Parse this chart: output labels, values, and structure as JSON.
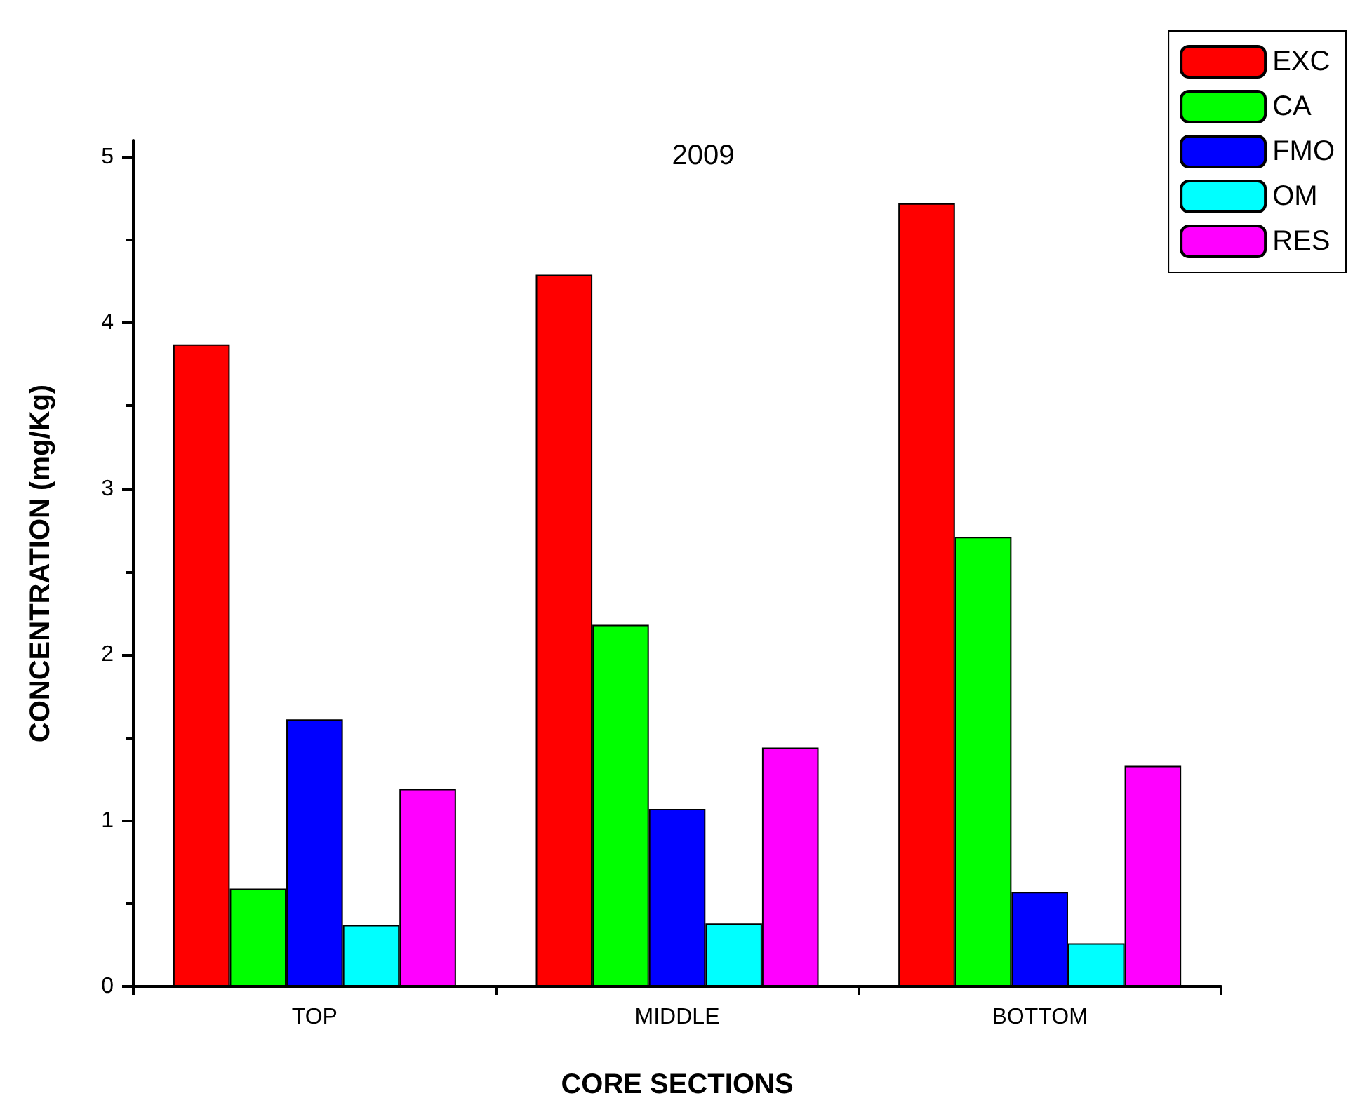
{
  "chart_data": {
    "type": "bar",
    "title": "2009",
    "xlabel": "CORE SECTIONS",
    "ylabel": "CONCENTRATION (mg/Kg)",
    "categories": [
      "TOP",
      "MIDDLE",
      "BOTTOM"
    ],
    "series": [
      {
        "name": "EXC",
        "color": "#ff0000",
        "values": [
          3.87,
          4.29,
          4.72
        ]
      },
      {
        "name": "CA",
        "color": "#00ff00",
        "values": [
          0.59,
          2.18,
          2.71
        ]
      },
      {
        "name": "FMO",
        "color": "#0000ff",
        "values": [
          1.61,
          1.07,
          0.57
        ]
      },
      {
        "name": "OM",
        "color": "#00ffff",
        "values": [
          0.37,
          0.38,
          0.26
        ]
      },
      {
        "name": "RES",
        "color": "#ff00ff",
        "values": [
          1.19,
          1.44,
          1.33
        ]
      }
    ],
    "ylim": [
      0,
      5.1
    ],
    "yticks": [
      0,
      1,
      2,
      3,
      4,
      5
    ],
    "grid": false,
    "legend": "top right"
  }
}
